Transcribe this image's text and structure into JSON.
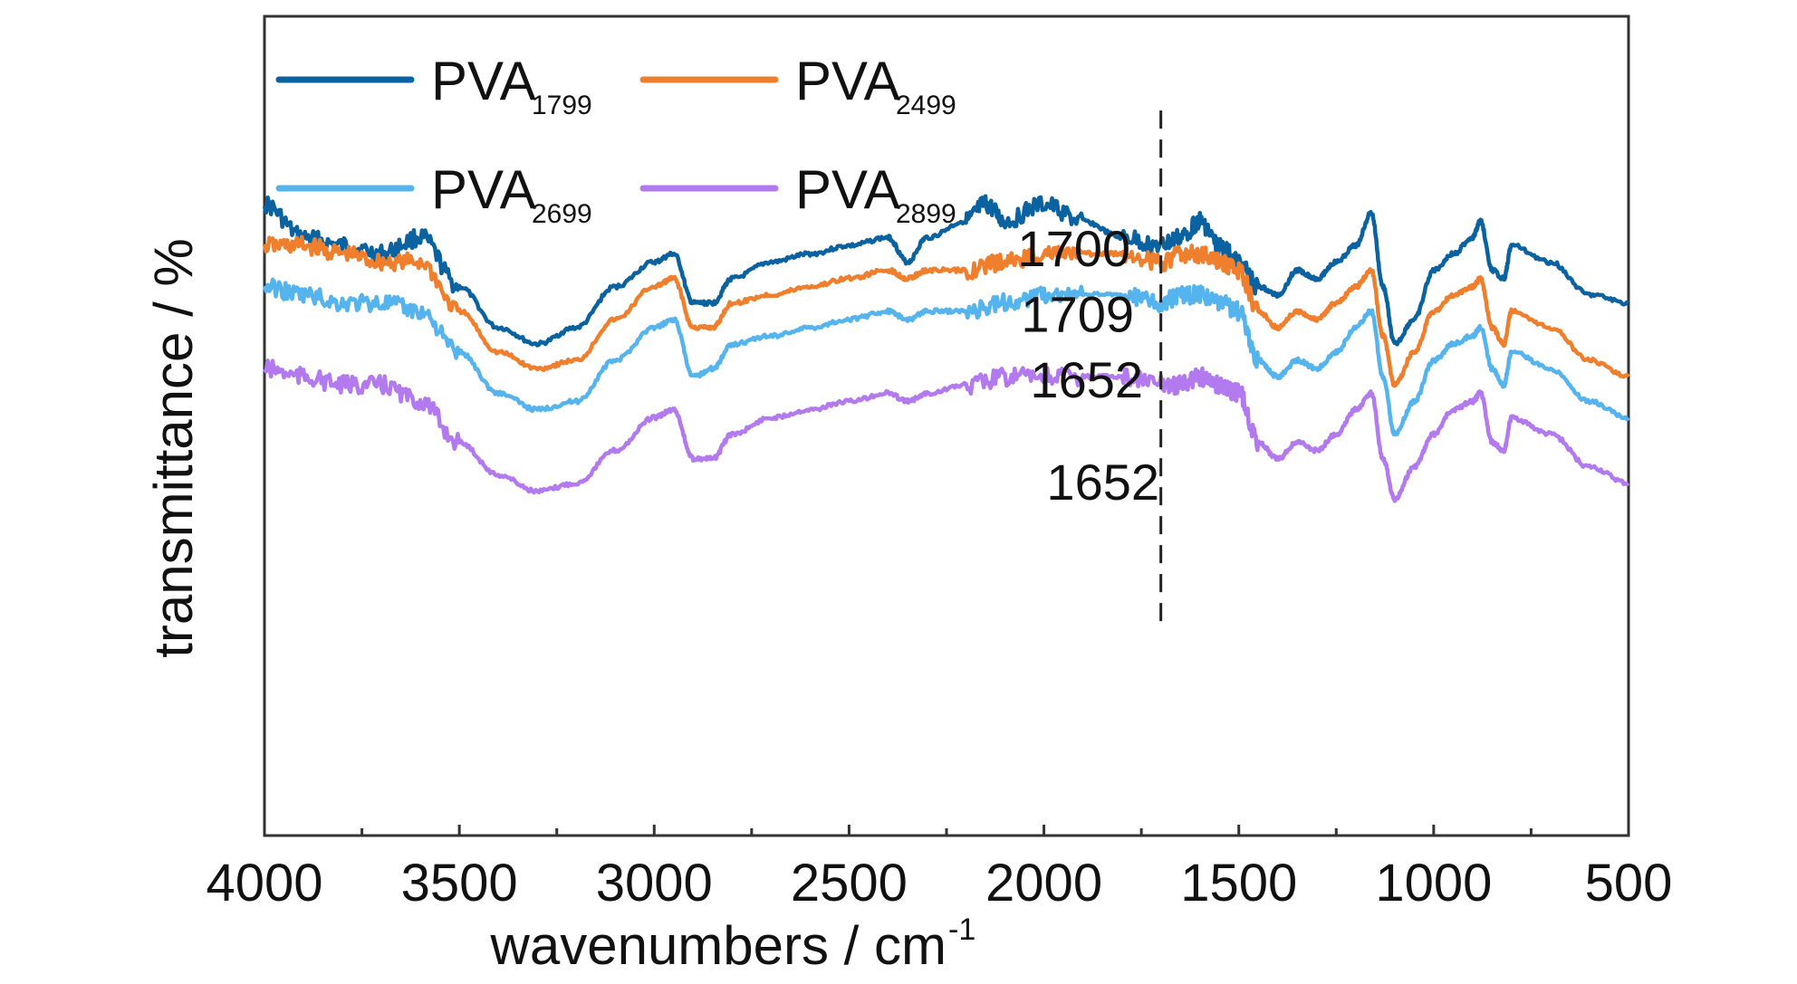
{
  "chart_data": {
    "type": "line",
    "xlabel": "wavenumbers / cm",
    "xlabel_superscript": "-1",
    "ylabel": "transmittance / %",
    "xlim": [
      4000,
      500
    ],
    "x_reversed": true,
    "y_ticks_shown": false,
    "grid": false,
    "x_ticks": [
      "4000",
      "3500",
      "3000",
      "2500",
      "2000",
      "1500",
      "1000",
      "500"
    ],
    "x_tick_values": [
      4000,
      3500,
      3000,
      2500,
      2000,
      1500,
      1000,
      500
    ],
    "legend_placement": "top-left",
    "series": [
      {
        "name": "PVA",
        "name_sub": "1799",
        "color": "#0a62a0",
        "points": [
          [
            4000,
            0.23
          ],
          [
            3900,
            0.27
          ],
          [
            3800,
            0.28
          ],
          [
            3700,
            0.29
          ],
          [
            3600,
            0.27
          ],
          [
            3500,
            0.33
          ],
          [
            3400,
            0.38
          ],
          [
            3300,
            0.4
          ],
          [
            3200,
            0.38
          ],
          [
            3100,
            0.33
          ],
          [
            3000,
            0.3
          ],
          [
            2950,
            0.29
          ],
          [
            2900,
            0.35
          ],
          [
            2850,
            0.35
          ],
          [
            2800,
            0.32
          ],
          [
            2700,
            0.3
          ],
          [
            2600,
            0.29
          ],
          [
            2500,
            0.28
          ],
          [
            2400,
            0.27
          ],
          [
            2350,
            0.3
          ],
          [
            2300,
            0.27
          ],
          [
            2200,
            0.25
          ],
          [
            2150,
            0.23
          ],
          [
            2100,
            0.25
          ],
          [
            2000,
            0.23
          ],
          [
            1900,
            0.25
          ],
          [
            1800,
            0.27
          ],
          [
            1700,
            0.28
          ],
          [
            1650,
            0.27
          ],
          [
            1600,
            0.25
          ],
          [
            1550,
            0.28
          ],
          [
            1500,
            0.3
          ],
          [
            1450,
            0.33
          ],
          [
            1400,
            0.34
          ],
          [
            1350,
            0.31
          ],
          [
            1300,
            0.32
          ],
          [
            1250,
            0.3
          ],
          [
            1200,
            0.28
          ],
          [
            1160,
            0.24
          ],
          [
            1130,
            0.33
          ],
          [
            1100,
            0.4
          ],
          [
            1050,
            0.37
          ],
          [
            1000,
            0.31
          ],
          [
            950,
            0.29
          ],
          [
            900,
            0.27
          ],
          [
            880,
            0.25
          ],
          [
            850,
            0.31
          ],
          [
            820,
            0.32
          ],
          [
            800,
            0.28
          ],
          [
            700,
            0.3
          ],
          [
            600,
            0.34
          ],
          [
            500,
            0.35
          ]
        ]
      },
      {
        "name": "PVA",
        "name_sub": "2499",
        "color": "#ef7f2d",
        "points": [
          [
            4000,
            0.28
          ],
          [
            3900,
            0.28
          ],
          [
            3800,
            0.29
          ],
          [
            3700,
            0.3
          ],
          [
            3600,
            0.3
          ],
          [
            3500,
            0.36
          ],
          [
            3400,
            0.41
          ],
          [
            3300,
            0.43
          ],
          [
            3200,
            0.42
          ],
          [
            3100,
            0.37
          ],
          [
            3000,
            0.33
          ],
          [
            2950,
            0.32
          ],
          [
            2900,
            0.38
          ],
          [
            2850,
            0.38
          ],
          [
            2800,
            0.35
          ],
          [
            2700,
            0.34
          ],
          [
            2600,
            0.33
          ],
          [
            2500,
            0.32
          ],
          [
            2400,
            0.31
          ],
          [
            2350,
            0.32
          ],
          [
            2300,
            0.31
          ],
          [
            2200,
            0.31
          ],
          [
            2100,
            0.3
          ],
          [
            2000,
            0.29
          ],
          [
            1900,
            0.29
          ],
          [
            1800,
            0.29
          ],
          [
            1700,
            0.3
          ],
          [
            1650,
            0.29
          ],
          [
            1600,
            0.29
          ],
          [
            1550,
            0.3
          ],
          [
            1500,
            0.31
          ],
          [
            1450,
            0.36
          ],
          [
            1400,
            0.38
          ],
          [
            1350,
            0.36
          ],
          [
            1300,
            0.37
          ],
          [
            1250,
            0.35
          ],
          [
            1200,
            0.33
          ],
          [
            1160,
            0.31
          ],
          [
            1130,
            0.39
          ],
          [
            1100,
            0.45
          ],
          [
            1050,
            0.41
          ],
          [
            1000,
            0.36
          ],
          [
            950,
            0.34
          ],
          [
            900,
            0.33
          ],
          [
            880,
            0.32
          ],
          [
            850,
            0.38
          ],
          [
            820,
            0.4
          ],
          [
            800,
            0.36
          ],
          [
            700,
            0.38
          ],
          [
            600,
            0.42
          ],
          [
            500,
            0.44
          ]
        ]
      },
      {
        "name": "PVA",
        "name_sub": "2699",
        "color": "#55b4ee",
        "points": [
          [
            4000,
            0.33
          ],
          [
            3900,
            0.34
          ],
          [
            3800,
            0.35
          ],
          [
            3700,
            0.35
          ],
          [
            3600,
            0.36
          ],
          [
            3500,
            0.41
          ],
          [
            3400,
            0.46
          ],
          [
            3300,
            0.48
          ],
          [
            3200,
            0.47
          ],
          [
            3100,
            0.42
          ],
          [
            3000,
            0.38
          ],
          [
            2950,
            0.37
          ],
          [
            2900,
            0.44
          ],
          [
            2850,
            0.43
          ],
          [
            2800,
            0.4
          ],
          [
            2700,
            0.39
          ],
          [
            2600,
            0.38
          ],
          [
            2500,
            0.37
          ],
          [
            2400,
            0.36
          ],
          [
            2350,
            0.37
          ],
          [
            2300,
            0.36
          ],
          [
            2200,
            0.36
          ],
          [
            2100,
            0.35
          ],
          [
            2000,
            0.34
          ],
          [
            1900,
            0.34
          ],
          [
            1800,
            0.34
          ],
          [
            1700,
            0.35
          ],
          [
            1650,
            0.34
          ],
          [
            1600,
            0.34
          ],
          [
            1550,
            0.35
          ],
          [
            1500,
            0.36
          ],
          [
            1450,
            0.42
          ],
          [
            1400,
            0.44
          ],
          [
            1350,
            0.42
          ],
          [
            1300,
            0.43
          ],
          [
            1250,
            0.41
          ],
          [
            1200,
            0.38
          ],
          [
            1160,
            0.36
          ],
          [
            1130,
            0.44
          ],
          [
            1100,
            0.51
          ],
          [
            1050,
            0.47
          ],
          [
            1000,
            0.42
          ],
          [
            950,
            0.4
          ],
          [
            900,
            0.39
          ],
          [
            880,
            0.38
          ],
          [
            850,
            0.43
          ],
          [
            820,
            0.45
          ],
          [
            800,
            0.41
          ],
          [
            700,
            0.43
          ],
          [
            600,
            0.47
          ],
          [
            500,
            0.49
          ]
        ]
      },
      {
        "name": "PVA",
        "name_sub": "2899",
        "color": "#b37af0",
        "points": [
          [
            4000,
            0.43
          ],
          [
            3900,
            0.44
          ],
          [
            3800,
            0.45
          ],
          [
            3700,
            0.45
          ],
          [
            3600,
            0.47
          ],
          [
            3500,
            0.52
          ],
          [
            3400,
            0.56
          ],
          [
            3300,
            0.58
          ],
          [
            3200,
            0.57
          ],
          [
            3100,
            0.53
          ],
          [
            3000,
            0.49
          ],
          [
            2950,
            0.48
          ],
          [
            2900,
            0.54
          ],
          [
            2850,
            0.54
          ],
          [
            2800,
            0.51
          ],
          [
            2700,
            0.49
          ],
          [
            2600,
            0.48
          ],
          [
            2500,
            0.47
          ],
          [
            2400,
            0.46
          ],
          [
            2350,
            0.47
          ],
          [
            2300,
            0.46
          ],
          [
            2200,
            0.45
          ],
          [
            2100,
            0.44
          ],
          [
            2000,
            0.44
          ],
          [
            1900,
            0.44
          ],
          [
            1800,
            0.44
          ],
          [
            1700,
            0.45
          ],
          [
            1650,
            0.45
          ],
          [
            1600,
            0.44
          ],
          [
            1550,
            0.45
          ],
          [
            1500,
            0.46
          ],
          [
            1450,
            0.52
          ],
          [
            1400,
            0.54
          ],
          [
            1350,
            0.52
          ],
          [
            1300,
            0.53
          ],
          [
            1250,
            0.51
          ],
          [
            1200,
            0.48
          ],
          [
            1160,
            0.46
          ],
          [
            1130,
            0.54
          ],
          [
            1100,
            0.59
          ],
          [
            1050,
            0.55
          ],
          [
            1000,
            0.51
          ],
          [
            950,
            0.48
          ],
          [
            900,
            0.47
          ],
          [
            880,
            0.46
          ],
          [
            850,
            0.52
          ],
          [
            820,
            0.53
          ],
          [
            800,
            0.49
          ],
          [
            700,
            0.51
          ],
          [
            600,
            0.55
          ],
          [
            500,
            0.57
          ]
        ]
      }
    ],
    "reference_line": {
      "x": 1700,
      "style": "dashed",
      "color": "#222222"
    },
    "annotations": [
      {
        "text": "1700",
        "series_index": 0
      },
      {
        "text": "1709",
        "series_index": 1
      },
      {
        "text": "1652",
        "series_index": 2
      },
      {
        "text": "1652",
        "series_index": 3
      }
    ]
  }
}
